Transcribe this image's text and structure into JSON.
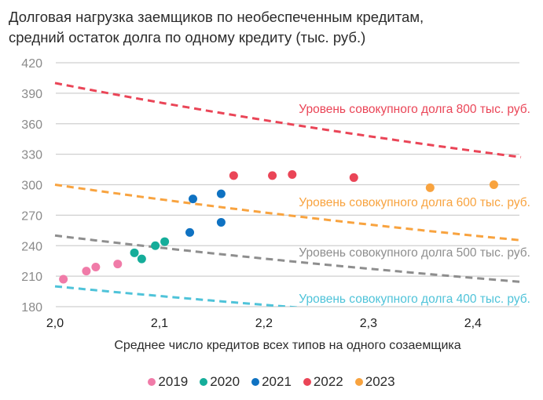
{
  "chart_data": {
    "type": "scatter",
    "title": "Долговая нагрузка заемщиков по необеспеченным кредитам,",
    "subtitle": "средний остаток долга по одному кредиту (тыс. руб.)",
    "xlabel": "Среднее число кредитов всех типов на одного созаемщика",
    "ylabel": "",
    "xlim": [
      2.0,
      2.446
    ],
    "ylim": [
      180,
      420
    ],
    "xticks": [
      2.0,
      2.1,
      2.2,
      2.3,
      2.4
    ],
    "xtick_labels": [
      "2,0",
      "2,1",
      "2,2",
      "2,3",
      "2,4"
    ],
    "yticks": [
      180,
      210,
      240,
      270,
      300,
      330,
      360,
      390,
      420
    ],
    "ytick_labels": [
      "180",
      "210",
      "240",
      "270",
      "300",
      "330",
      "360",
      "390",
      "420"
    ],
    "grid": "horizontal",
    "legend_position": "bottom-center",
    "series": [
      {
        "name": "2019",
        "color": "#f07ba8",
        "points": [
          [
            2.008,
            207
          ],
          [
            2.03,
            215
          ],
          [
            2.039,
            219
          ],
          [
            2.06,
            222
          ]
        ]
      },
      {
        "name": "2020",
        "color": "#15ad9a",
        "points": [
          [
            2.076,
            233
          ],
          [
            2.083,
            227
          ],
          [
            2.096,
            240
          ],
          [
            2.105,
            244
          ]
        ]
      },
      {
        "name": "2021",
        "color": "#0f72c2",
        "points": [
          [
            2.129,
            253
          ],
          [
            2.132,
            286
          ],
          [
            2.159,
            263
          ],
          [
            2.159,
            291
          ]
        ]
      },
      {
        "name": "2022",
        "color": "#ea4557",
        "points": [
          [
            2.171,
            309
          ],
          [
            2.208,
            309
          ],
          [
            2.227,
            310
          ],
          [
            2.286,
            307
          ]
        ]
      },
      {
        "name": "2023",
        "color": "#f8a33f",
        "points": [
          [
            2.359,
            297
          ],
          [
            2.42,
            300
          ]
        ]
      }
    ],
    "reference_curves": [
      {
        "level": 800,
        "label": "Уровень совокупного долга 800 тыс. руб.",
        "color": "#ea4557",
        "formula": "y = 800 / x"
      },
      {
        "level": 600,
        "label": "Уровень совокупного долга 600 тыс. руб.",
        "color": "#f8a33f",
        "formula": "y = 600 / x"
      },
      {
        "level": 500,
        "label": "Уровень совокупного долга 500 тыс. руб.",
        "color": "#8e8e8e",
        "formula": "y = 500 / x"
      },
      {
        "level": 400,
        "label": "Уровень совокупного долга 400 тыс. руб.",
        "color": "#4fc3d9",
        "formula": "y = 400 / x"
      }
    ]
  }
}
